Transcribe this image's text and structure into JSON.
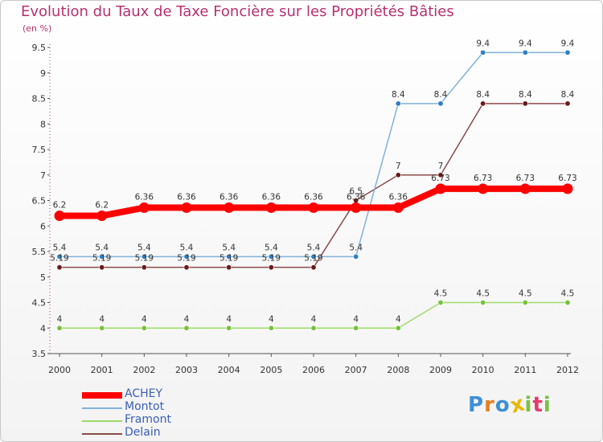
{
  "header": {
    "title": "Evolution du Taux de Taxe Foncière sur les Propriétés Bâties",
    "unit": "(en %)"
  },
  "logo": {
    "text": "Proxiti",
    "colors": [
      "#3d8fd6",
      "#e67e22",
      "#3d8fd6",
      "#e6b800",
      "#7ac143",
      "#e63a6b",
      "#7ac143"
    ]
  },
  "chart_data": {
    "type": "line",
    "title": "Evolution du Taux de Taxe Foncière sur les Propriétés Bâties",
    "ylabel": "(en %)",
    "xlabel": "",
    "ylim": [
      3.5,
      9.5
    ],
    "yticks": [
      "3.5",
      "4",
      "4.5",
      "5",
      "5.5",
      "6",
      "6.5",
      "7",
      "7.5",
      "8",
      "8.5",
      "9",
      "9.5"
    ],
    "categories": [
      "2000",
      "2001",
      "2002",
      "2003",
      "2004",
      "2005",
      "2006",
      "2007",
      "2008",
      "2009",
      "2010",
      "2011",
      "2012"
    ],
    "grid": false,
    "legend": "bottom-left",
    "series": [
      {
        "name": "Framont",
        "color": "#9fdb6a",
        "dot": "#74c23a",
        "values": [
          4,
          4,
          4,
          4,
          4,
          4,
          4,
          4,
          4,
          4.5,
          4.5,
          4.5,
          4.5
        ],
        "labels": [
          "4",
          "4",
          "4",
          "4",
          "4",
          "4",
          "4",
          "4",
          "4",
          "4.5",
          "4.5",
          "4.5",
          "4.5"
        ]
      },
      {
        "name": "Delain",
        "color": "#8b4a4a",
        "dot": "#6b1a1a",
        "values": [
          5.19,
          5.19,
          5.19,
          5.19,
          5.19,
          5.19,
          5.19,
          6.5,
          7,
          7,
          8.4,
          8.4,
          8.4
        ],
        "labels": [
          "5.19",
          "5.19",
          "5.19",
          "5.19",
          "5.19",
          "5.19",
          "5.19",
          "6.5",
          "7",
          "7",
          "8.4",
          "8.4",
          "8.4"
        ]
      },
      {
        "name": "Montot",
        "color": "#7fb2da",
        "dot": "#2e7fc4",
        "values": [
          5.4,
          5.4,
          5.4,
          5.4,
          5.4,
          5.4,
          5.4,
          5.4,
          8.4,
          8.4,
          9.4,
          9.4,
          9.4
        ],
        "labels": [
          "5.4",
          "5.4",
          "5.4",
          "5.4",
          "5.4",
          "5.4",
          "5.4",
          "5.4",
          "8.4",
          "8.4",
          "9.4",
          "9.4",
          "9.4"
        ]
      },
      {
        "name": "ACHEY",
        "color": "#ff0000",
        "dot": "#ff0000",
        "values": [
          6.2,
          6.2,
          6.36,
          6.36,
          6.36,
          6.36,
          6.36,
          6.36,
          6.36,
          6.73,
          6.73,
          6.73,
          6.73
        ],
        "labels": [
          "6.2",
          "6.2",
          "6.36",
          "6.36",
          "6.36",
          "6.36",
          "6.36",
          "6.36",
          "6.36",
          "6.73",
          "6.73",
          "6.73",
          "6.73"
        ]
      }
    ],
    "legend_order": [
      "ACHEY",
      "Montot",
      "Framont",
      "Delain"
    ]
  }
}
